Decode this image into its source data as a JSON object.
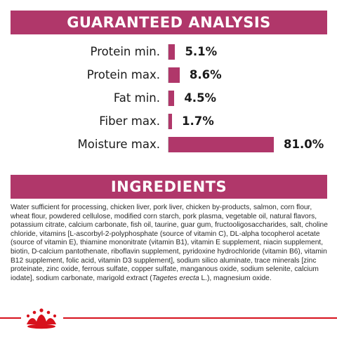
{
  "guaranteed_analysis": {
    "title": "GUARANTEED ANALYSIS",
    "rows": [
      {
        "label": "Protein min.",
        "value": "5.1%",
        "percent": 5.1
      },
      {
        "label": "Protein max.",
        "value": "8.6%",
        "percent": 8.6
      },
      {
        "label": "Fat min.",
        "value": "4.5%",
        "percent": 4.5
      },
      {
        "label": "Fiber max.",
        "value": "1.7%",
        "percent": 1.7
      },
      {
        "label": "Moisture max.",
        "value": "81.0%",
        "percent": 81.0
      }
    ]
  },
  "ingredients": {
    "title": "INGREDIENTS",
    "text_before_italic": "Water sufficient for processing, chicken liver, pork liver, chicken by-products, salmon, corn flour, wheat flour, powdered cellulose, modified corn starch, pork plasma, vegetable oil, natural flavors, potassium citrate, calcium carbonate, fish oil, taurine, guar gum, fructooligosaccharides, salt, choline chloride, vitamins [L-ascorbyl-2-polyphosphate (source of vitamin C), DL-alpha tocopherol acetate (source of vitamin E), thiamine mononitrate (vitamin B1), vitamin E supplement, niacin supplement, biotin, D-calcium pantothenate, riboflavin supplement, pyridoxine hydrochloride (vitamin B6), vitamin B12 supplement, folic acid, vitamin D3 supplement], sodium silico aluminate, trace minerals [zinc proteinate, zinc oxide, ferrous sulfate, copper sulfate, manganous oxide, sodium selenite, calcium iodate], sodium carbonate, marigold extract (",
    "italic": "Tagetes erecta",
    "text_after_italic": " L.), magnesium oxide."
  },
  "colors": {
    "accent": "#b0376a",
    "footer_line": "#d7111c"
  }
}
